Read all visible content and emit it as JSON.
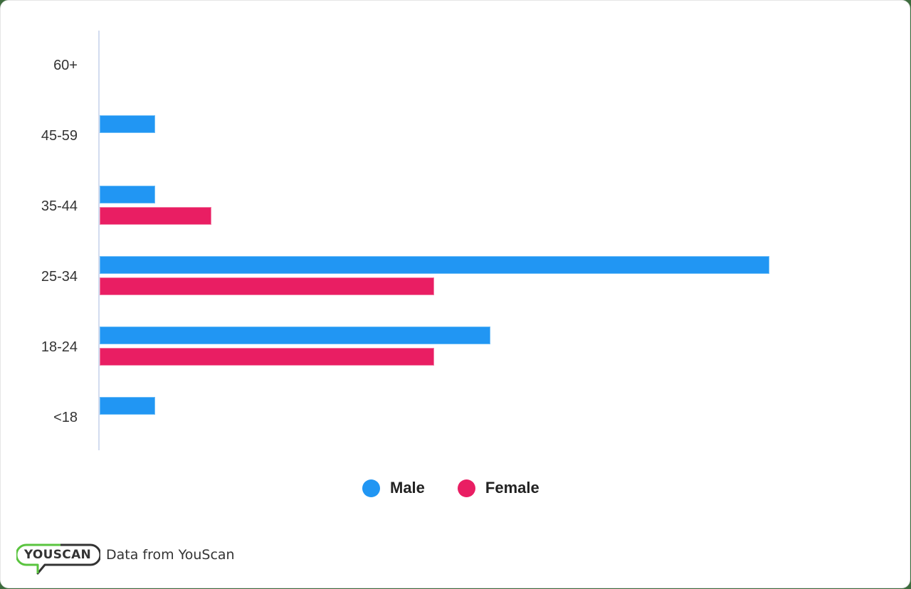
{
  "chart_data": {
    "type": "bar",
    "orientation": "horizontal",
    "title": "",
    "xlabel": "",
    "ylabel": "",
    "categories": [
      "60+",
      "45-59",
      "35-44",
      "25-34",
      "18-24",
      "<18"
    ],
    "series": [
      {
        "name": "Male",
        "color": "#2196f3",
        "values": [
          0,
          1,
          1,
          12,
          7,
          1
        ]
      },
      {
        "name": "Female",
        "color": "#e91e63",
        "values": [
          0,
          0,
          2,
          6,
          6,
          0
        ]
      }
    ],
    "xlim": [
      0,
      14
    ],
    "grid": false,
    "legend_position": "bottom",
    "x_axis_labels_visible": false
  },
  "legend": {
    "items": [
      {
        "label": "Male",
        "color": "#2196f3"
      },
      {
        "label": "Female",
        "color": "#e91e63"
      }
    ]
  },
  "footer": {
    "logo_text": "YOUSCAN",
    "attribution": "Data from YouScan",
    "logo_green": "#5ac43f",
    "logo_dark": "#333333"
  }
}
